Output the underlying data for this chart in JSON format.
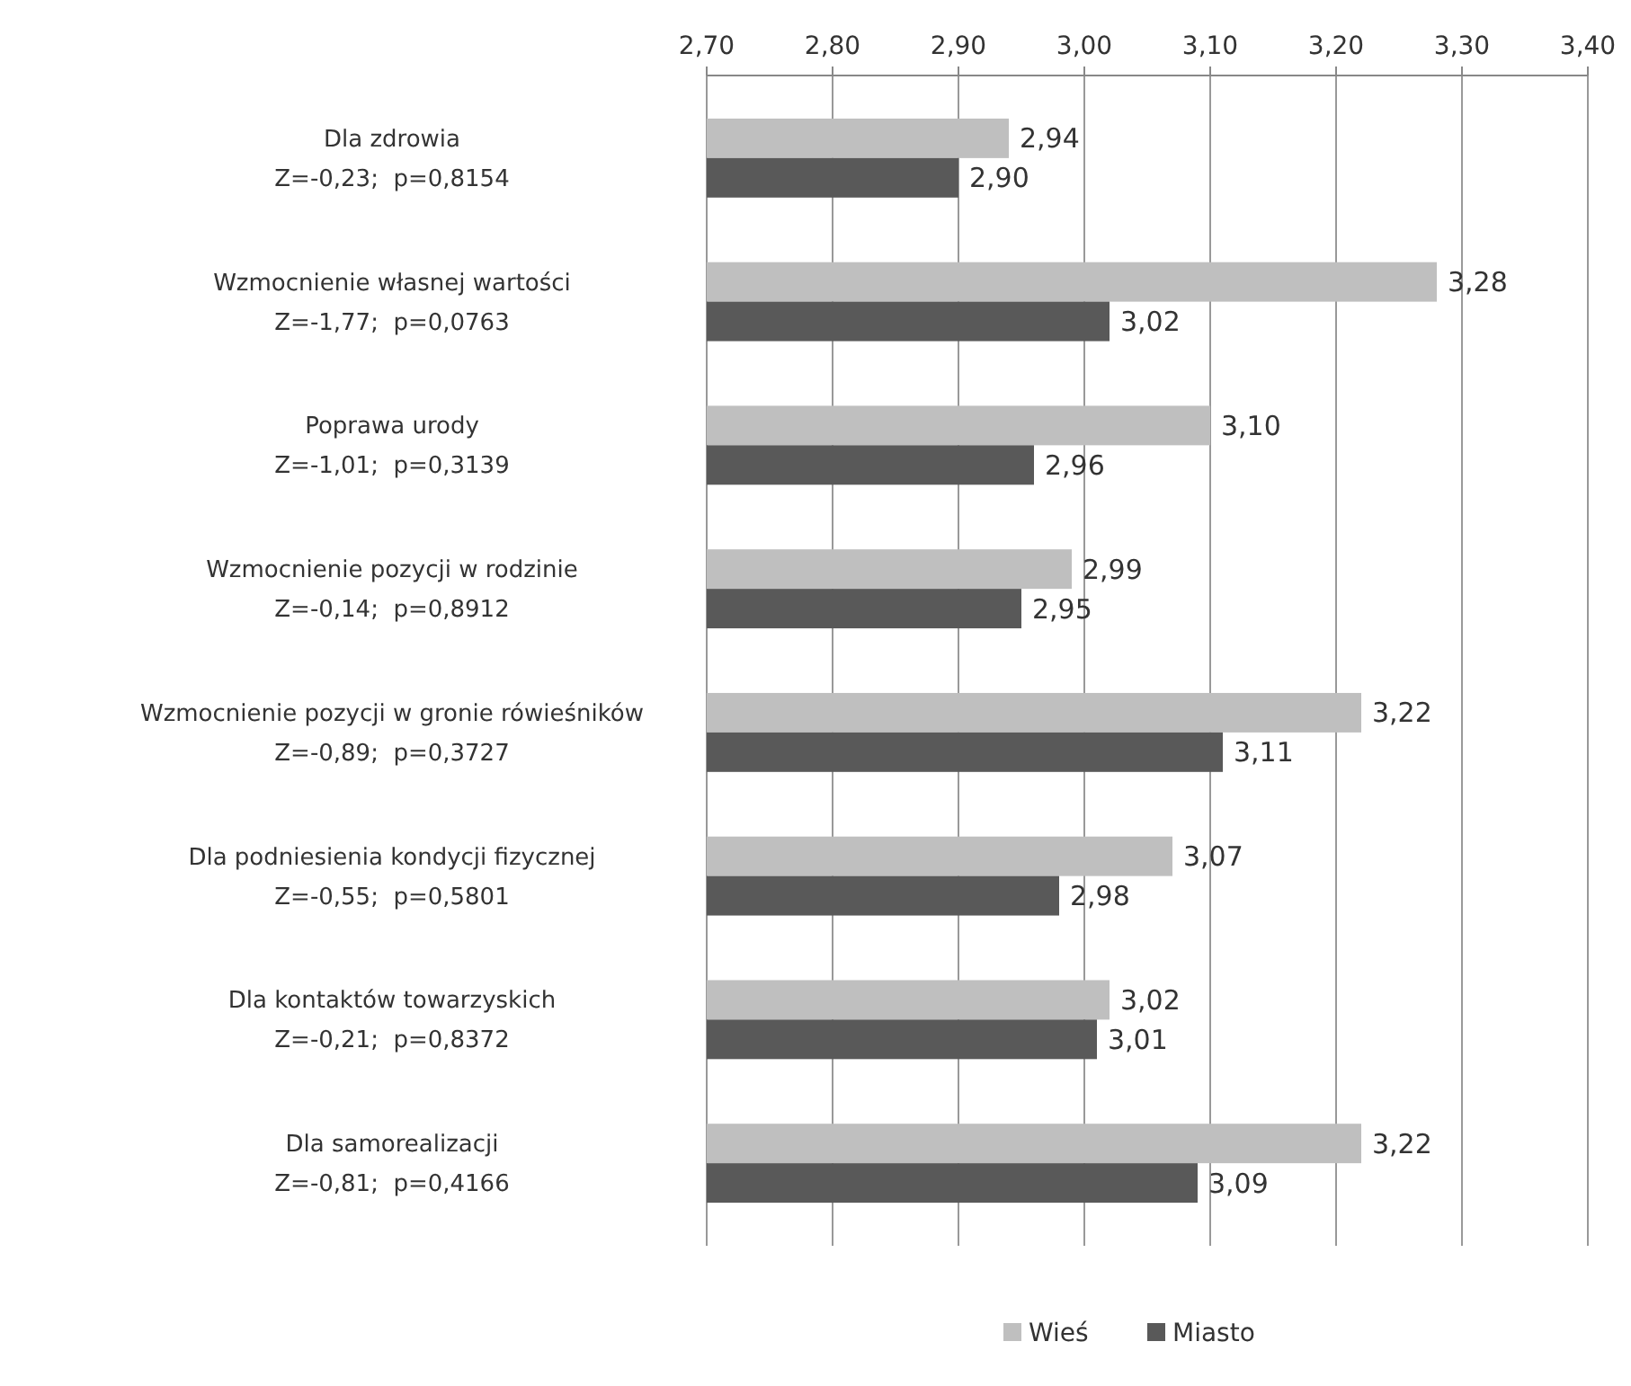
{
  "chart_data": {
    "type": "bar",
    "orientation": "horizontal",
    "categories": [
      "Dla zdrowia\nZ=-0,23;  p=0,8154",
      "Wzmocnienie własnej wartości\nZ=-1,77;  p=0,0763",
      "Poprawa urody\nZ=-1,01;  p=0,3139",
      "Wzmocnienie pozycji w rodzinie\nZ=-0,14;  p=0,8912",
      "Wzmocnienie pozycji w gronie rówieśników\nZ=-0,89;  p=0,3727",
      "Dla podniesienia kondycji fizycznej\nZ=-0,55;  p=0,5801",
      "Dla kontaktów towarzyskich\nZ=-0,21;  p=0,8372",
      "Dla samorealizacji\nZ=-0,81;  p=0,4166"
    ],
    "series": [
      {
        "name": "Wieś",
        "color": "#bfbfbf",
        "values": [
          2.94,
          3.28,
          3.1,
          2.99,
          3.22,
          3.07,
          3.02,
          3.22
        ],
        "value_labels": [
          "2,94",
          "3,28",
          "3,10",
          "2,99",
          "3,22",
          "3,07",
          "3,02",
          "3,22"
        ]
      },
      {
        "name": "Miasto",
        "color": "#595959",
        "values": [
          2.9,
          3.02,
          2.96,
          2.95,
          3.11,
          2.98,
          3.01,
          3.09
        ],
        "value_labels": [
          "2,90",
          "3,02",
          "2,96",
          "2,95",
          "3,11",
          "2,98",
          "3,01",
          "3,09"
        ]
      }
    ],
    "xlim": [
      2.7,
      3.4
    ],
    "xticks": [
      {
        "value": 2.7,
        "label": "2,70"
      },
      {
        "value": 2.8,
        "label": "2,80"
      },
      {
        "value": 2.9,
        "label": "2,90"
      },
      {
        "value": 3.0,
        "label": "3,00"
      },
      {
        "value": 3.1,
        "label": "3,10"
      },
      {
        "value": 3.2,
        "label": "3,20"
      },
      {
        "value": 3.3,
        "label": "3,30"
      },
      {
        "value": 3.4,
        "label": "3,40"
      }
    ],
    "grid": "x",
    "legend": "bottom"
  }
}
